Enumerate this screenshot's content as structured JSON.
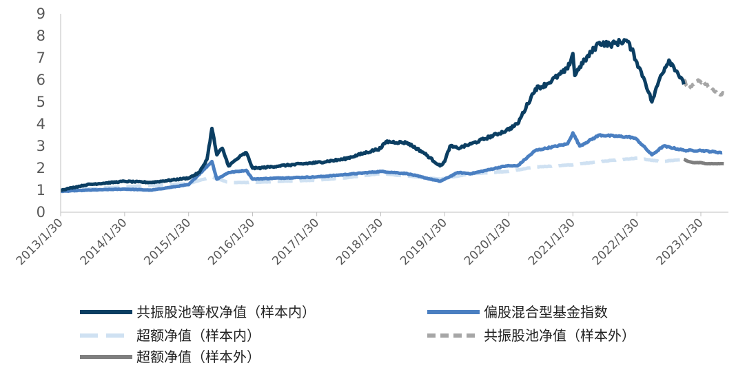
{
  "chart_data": {
    "type": "line",
    "title": "",
    "xlabel": "",
    "ylabel": "",
    "ylim": [
      0,
      9
    ],
    "yticks": [
      0,
      1,
      2,
      3,
      4,
      5,
      6,
      7,
      8,
      9
    ],
    "xticks": [
      "2013/1/30",
      "2014/1/30",
      "2015/1/30",
      "2016/1/30",
      "2017/1/30",
      "2018/1/30",
      "2019/1/30",
      "2020/1/30",
      "2021/1/30",
      "2022/1/30",
      "2023/1/30"
    ],
    "grid": false,
    "legend_position": "bottom",
    "series": [
      {
        "name": "共振股池等权净值（样本内）",
        "color": "#0b3e62",
        "style": "solid",
        "x": [
          "2013/1/30",
          "2013/6/30",
          "2014/1/30",
          "2014/6/30",
          "2015/1/30",
          "2015/4/1",
          "2015/5/15",
          "2015/6/12",
          "2015/7/10",
          "2015/8/10",
          "2015/9/15",
          "2015/11/15",
          "2015/12/25",
          "2016/1/30",
          "2016/3/1",
          "2016/6/30",
          "2017/1/30",
          "2017/6/30",
          "2018/1/30",
          "2018/3/1",
          "2018/6/30",
          "2018/10/1",
          "2019/1/3",
          "2019/1/30",
          "2019/3/1",
          "2019/4/15",
          "2019/6/30",
          "2020/1/15",
          "2020/3/20",
          "2020/6/30",
          "2020/9/1",
          "2020/12/31",
          "2021/1/30",
          "2021/2/10",
          "2021/3/10",
          "2021/6/30",
          "2021/9/1",
          "2021/12/1",
          "2021/12/31",
          "2022/1/30",
          "2022/3/15",
          "2022/4/26",
          "2022/6/15",
          "2022/8/1",
          "2022/9/15",
          "2022/10/25"
        ],
        "values": [
          1.0,
          1.25,
          1.4,
          1.35,
          1.55,
          1.8,
          2.4,
          3.8,
          2.6,
          2.9,
          2.1,
          2.5,
          2.7,
          2.0,
          2.0,
          2.1,
          2.25,
          2.4,
          2.9,
          3.2,
          3.15,
          2.7,
          2.1,
          2.3,
          3.0,
          2.9,
          3.1,
          3.7,
          4.0,
          5.6,
          5.8,
          6.5,
          7.2,
          6.2,
          6.6,
          7.7,
          7.6,
          7.8,
          7.4,
          6.8,
          6.0,
          5.0,
          6.2,
          6.9,
          6.4,
          5.8
        ]
      },
      {
        "name": "偏股混合型基金指数",
        "color": "#4a7fc1",
        "style": "solid",
        "x": [
          "2013/1/30",
          "2013/6/30",
          "2014/1/30",
          "2014/6/30",
          "2015/1/30",
          "2015/6/12",
          "2015/7/10",
          "2015/9/15",
          "2015/12/25",
          "2016/1/30",
          "2016/6/30",
          "2017/1/30",
          "2017/6/30",
          "2018/1/30",
          "2018/6/30",
          "2019/1/3",
          "2019/1/30",
          "2019/4/15",
          "2019/6/30",
          "2020/1/15",
          "2020/3/20",
          "2020/6/30",
          "2020/12/31",
          "2021/1/30",
          "2021/3/10",
          "2021/6/30",
          "2021/12/31",
          "2022/1/30",
          "2022/4/26",
          "2022/7/1",
          "2022/10/31",
          "2023/1/30",
          "2023/6/1"
        ],
        "values": [
          0.95,
          1.0,
          1.05,
          1.0,
          1.25,
          2.3,
          1.5,
          1.8,
          1.9,
          1.5,
          1.55,
          1.6,
          1.7,
          1.85,
          1.75,
          1.4,
          1.5,
          1.8,
          1.75,
          2.1,
          2.1,
          2.8,
          3.1,
          3.6,
          3.0,
          3.5,
          3.4,
          3.3,
          2.6,
          3.0,
          2.8,
          2.8,
          2.7
        ]
      },
      {
        "name": "超额净值（样本内）",
        "color": "#cfe1f2",
        "style": "dashed",
        "x": [
          "2013/1/30",
          "2014/1/30",
          "2015/1/30",
          "2015/6/12",
          "2015/9/15",
          "2016/1/30",
          "2016/6/30",
          "2017/1/30",
          "2017/6/30",
          "2018/1/30",
          "2019/1/3",
          "2019/6/30",
          "2020/1/30",
          "2020/6/30",
          "2021/1/30",
          "2021/6/30",
          "2022/1/30",
          "2022/6/15",
          "2022/10/25"
        ],
        "values": [
          1.0,
          1.15,
          1.3,
          1.6,
          1.35,
          1.35,
          1.4,
          1.45,
          1.55,
          1.75,
          1.5,
          1.75,
          1.85,
          2.05,
          2.15,
          2.3,
          2.45,
          2.3,
          2.4
        ]
      },
      {
        "name": "共振股池净值（样本外）",
        "color": "#a6a6a6",
        "style": "dashed",
        "x": [
          "2022/10/25",
          "2022/11/20",
          "2022/12/20",
          "2023/1/15",
          "2023/3/1",
          "2023/4/15",
          "2023/5/15",
          "2023/6/10"
        ],
        "values": [
          6.0,
          5.6,
          5.8,
          6.0,
          5.8,
          5.5,
          5.35,
          5.4
        ]
      },
      {
        "name": "超额净值（样本外）",
        "color": "#7f7f7f",
        "style": "solid",
        "x": [
          "2022/10/25",
          "2022/11/20",
          "2022/12/20",
          "2023/1/30",
          "2023/3/1",
          "2023/4/15",
          "2023/6/10"
        ],
        "values": [
          2.4,
          2.3,
          2.25,
          2.25,
          2.2,
          2.2,
          2.2
        ]
      }
    ]
  }
}
